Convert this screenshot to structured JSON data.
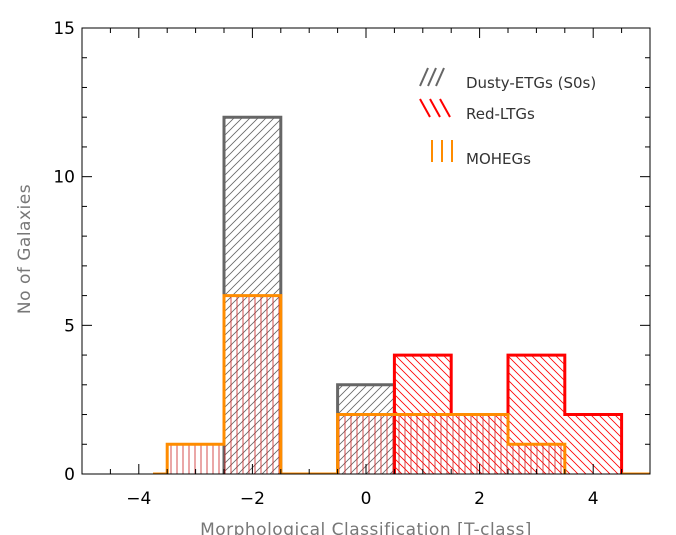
{
  "chart_data": {
    "type": "histogram",
    "xlabel": "Morphological Classification [T-class]",
    "ylabel": "No of Galaxies",
    "xlim": [
      -5,
      5
    ],
    "ylim": [
      0,
      15
    ],
    "xticks": [
      -4,
      -2,
      0,
      2,
      4
    ],
    "yticks": [
      0,
      5,
      10,
      15
    ],
    "xtick_labels": [
      "−4",
      "−2",
      "0",
      "2",
      "4"
    ],
    "ytick_labels": [
      "0",
      "5",
      "10",
      "15"
    ],
    "x_minor_step": 0.5,
    "y_minor_step": 1,
    "legend_position": "top-right",
    "series": [
      {
        "name": "Dusty-ETGs (S0s)",
        "color": "#666666",
        "hatch": "diagonal-right",
        "bins": [
          {
            "x0": -2.5,
            "x1": -1.5,
            "count": 12
          },
          {
            "x0": -0.5,
            "x1": 0.5,
            "count": 3
          }
        ]
      },
      {
        "name": "Red-LTGs",
        "color": "#ff0000",
        "hatch": "diagonal-left",
        "bins": [
          {
            "x0": 0.5,
            "x1": 1.5,
            "count": 4
          },
          {
            "x0": 1.5,
            "x1": 2.5,
            "count": 2
          },
          {
            "x0": 2.5,
            "x1": 3.5,
            "count": 4
          },
          {
            "x0": 3.5,
            "x1": 4.5,
            "count": 2
          }
        ]
      },
      {
        "name": "MOHEGs",
        "color": "#ff8c00",
        "hatch": "vertical",
        "bins": [
          {
            "x0": -3.5,
            "x1": -2.5,
            "count": 1
          },
          {
            "x0": -2.5,
            "x1": -1.5,
            "count": 6
          },
          {
            "x0": -0.5,
            "x1": 0.5,
            "count": 2
          },
          {
            "x0": 0.5,
            "x1": 1.5,
            "count": 2
          },
          {
            "x0": 1.5,
            "x1": 2.5,
            "count": 2
          },
          {
            "x0": 2.5,
            "x1": 3.5,
            "count": 1
          }
        ]
      }
    ]
  }
}
